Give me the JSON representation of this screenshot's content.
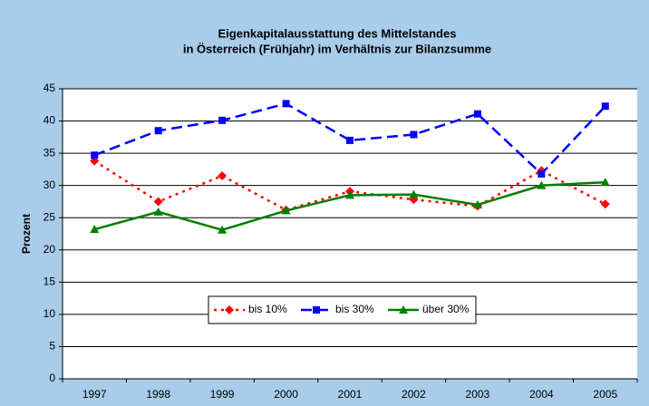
{
  "chart_data": {
    "type": "line",
    "title": [
      "Eigenkapitalausstattung des Mittelstandes",
      "in Österreich (Frühjahr) im Verhältnis zur Bilanzsumme"
    ],
    "y_label": "Prozent",
    "categories": [
      "1997",
      "1998",
      "1999",
      "2000",
      "2001",
      "2002",
      "2003",
      "2004",
      "2005"
    ],
    "series": [
      {
        "name": "bis 10%",
        "color": "#ff0000",
        "marker": "diamond",
        "dash": "dotted",
        "values": [
          33.8,
          27.5,
          31.5,
          26.2,
          29.1,
          27.8,
          26.8,
          32.3,
          27.1
        ]
      },
      {
        "name": "bis 30%",
        "color": "#0000ff",
        "marker": "square",
        "dash": "dashed",
        "values": [
          34.7,
          38.5,
          40.1,
          42.7,
          37.0,
          37.9,
          41.1,
          31.8,
          42.3
        ]
      },
      {
        "name": "über 30%",
        "color": "#008000",
        "marker": "triangle",
        "dash": "solid",
        "values": [
          23.2,
          25.9,
          23.1,
          26.1,
          28.5,
          28.6,
          27.0,
          30.0,
          30.5
        ]
      }
    ],
    "ylim": [
      0,
      45
    ],
    "yticks": [
      0,
      5,
      10,
      15,
      20,
      25,
      30,
      35,
      40,
      45
    ],
    "grid": true,
    "legend": "inside-bottom"
  }
}
